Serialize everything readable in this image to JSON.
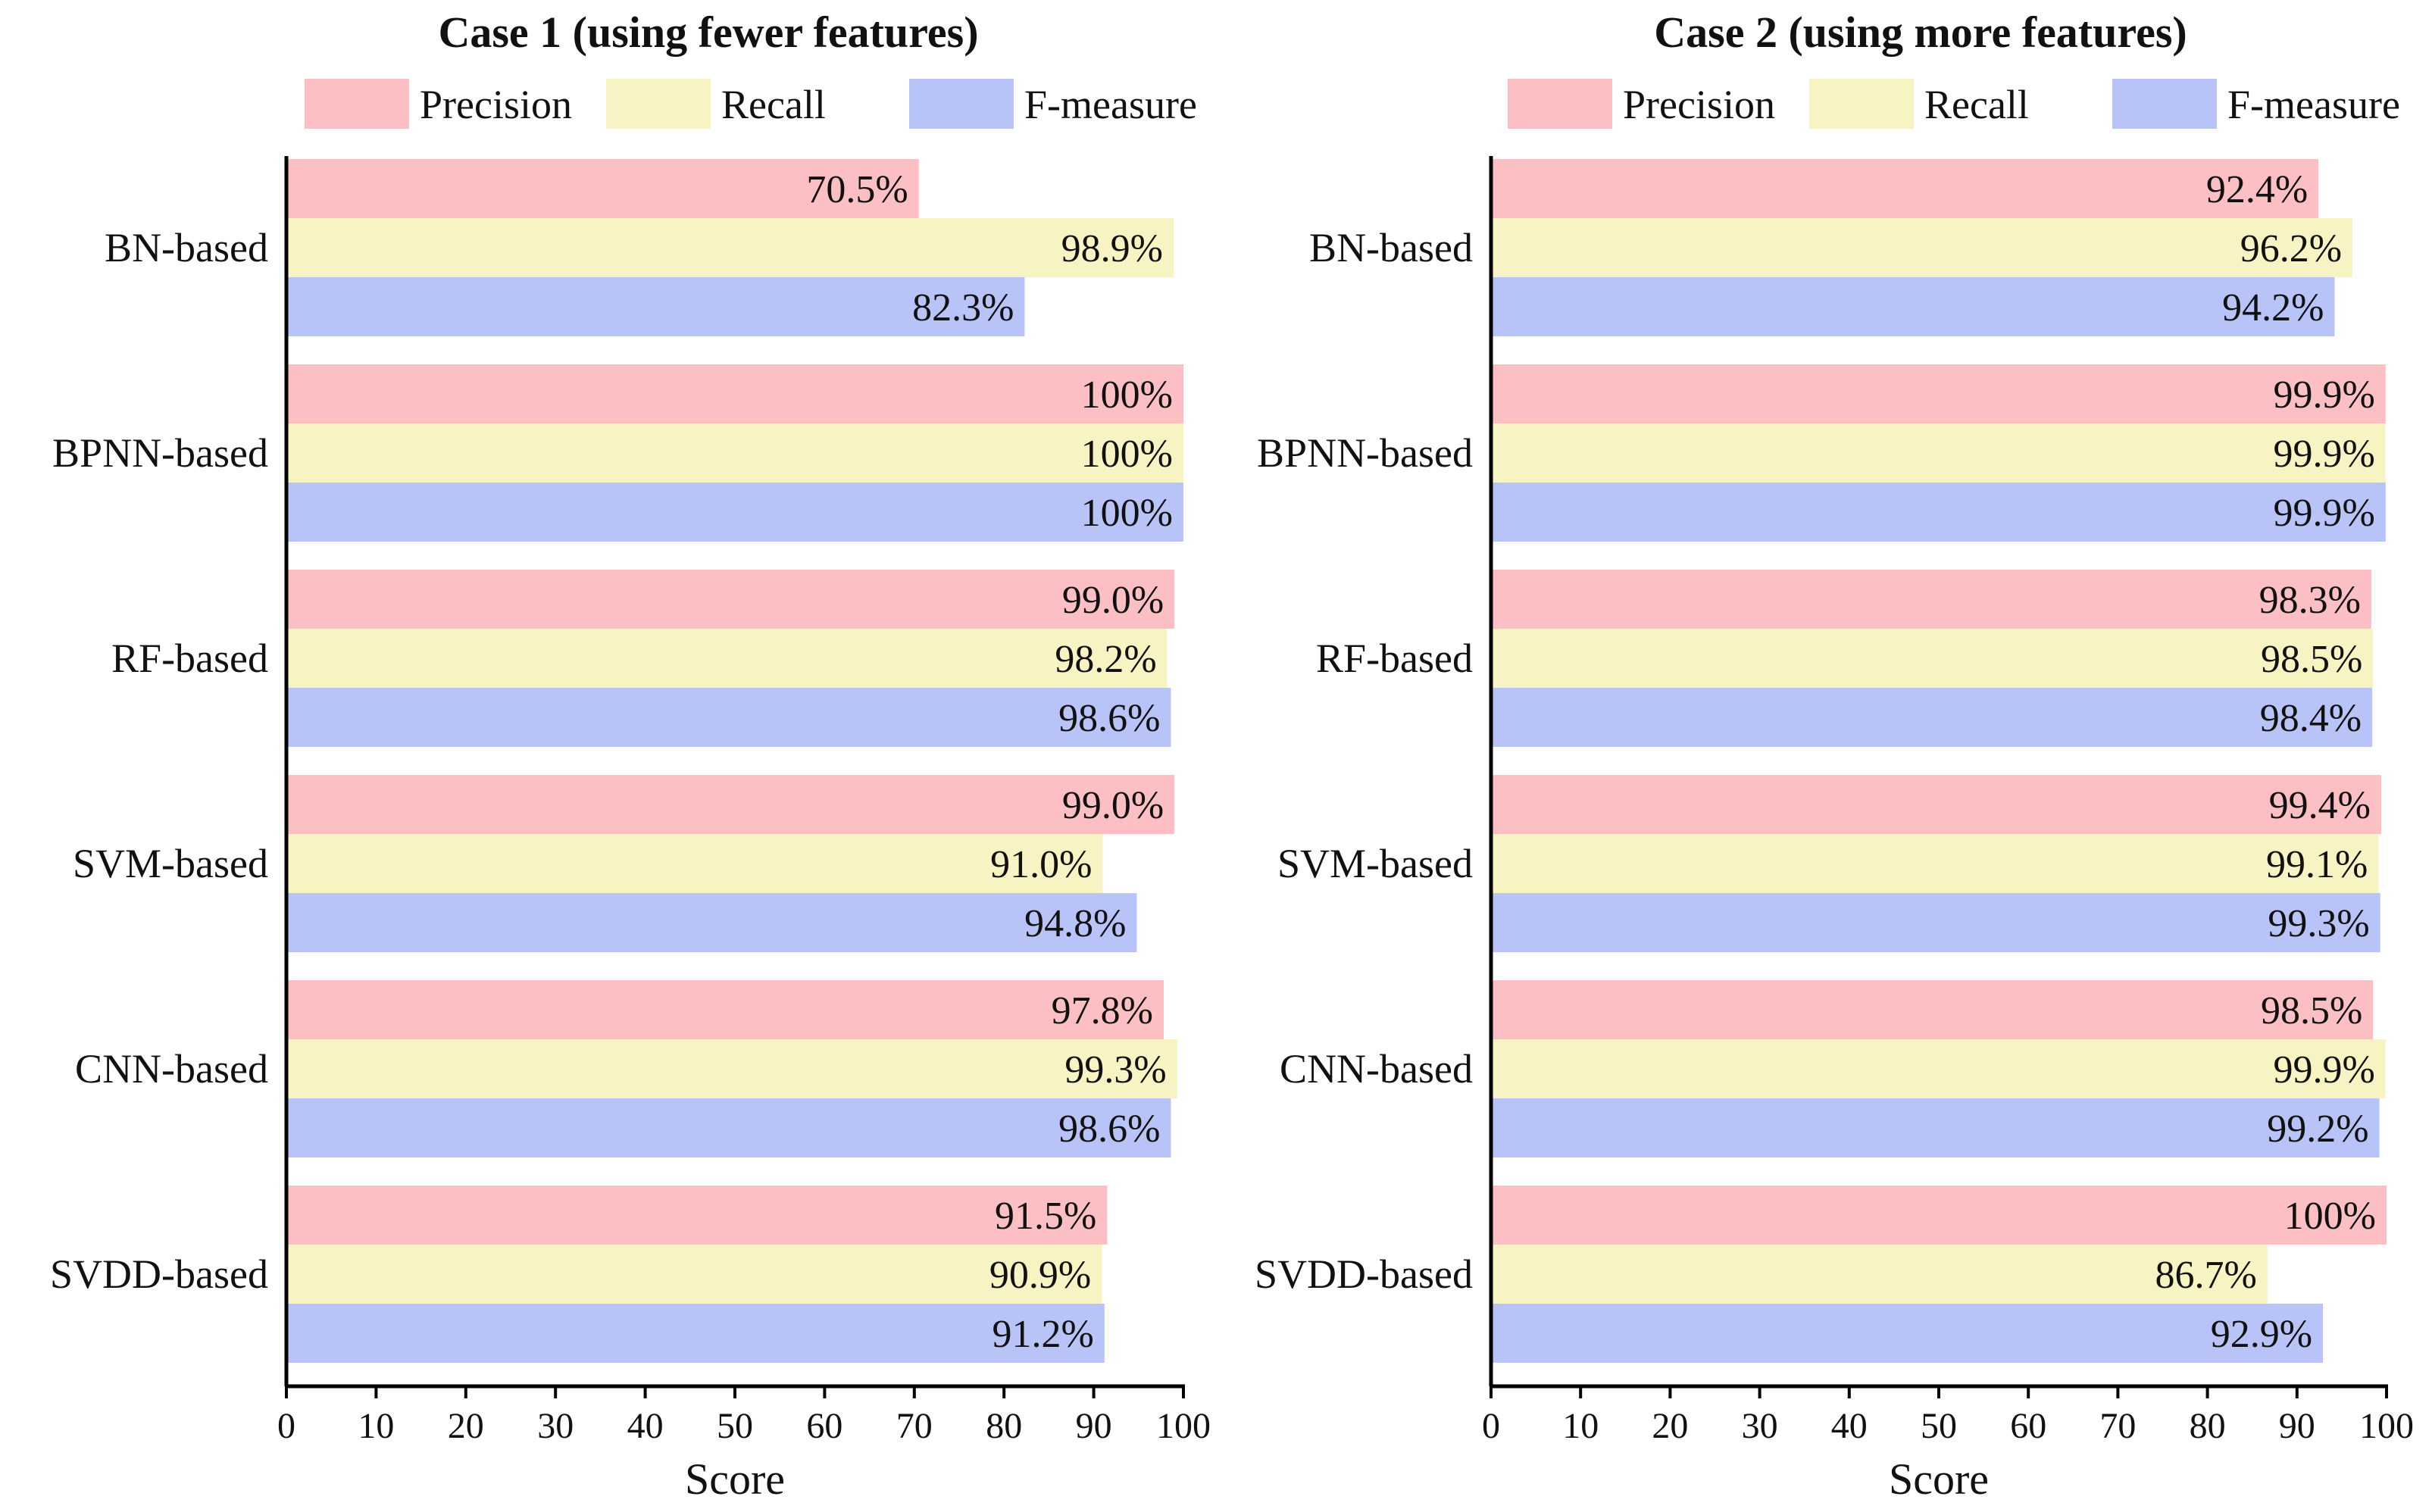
{
  "chart_data": [
    {
      "type": "bar",
      "orientation": "horizontal",
      "title": "Case 1 (using fewer features)",
      "xlabel": "Score",
      "ylabel": "",
      "xlim": [
        0,
        100
      ],
      "xticks": [
        "0",
        "10",
        "20",
        "30",
        "40",
        "50",
        "60",
        "70",
        "80",
        "90",
        "100"
      ],
      "categories": [
        "BN-based",
        "BPNN-based",
        "RF-based",
        "SVM-based",
        "CNN-based",
        "SVDD-based"
      ],
      "series": [
        {
          "name": "Precision",
          "color": "#fcc0c4",
          "values": [
            70.5,
            100,
            99.0,
            99.0,
            97.8,
            91.5
          ],
          "labels": [
            "70.5%",
            "100%",
            "99.0%",
            "99.0%",
            "97.8%",
            "91.5%"
          ]
        },
        {
          "name": "Recall",
          "color": "#f8f3c3",
          "values": [
            98.9,
            100,
            98.2,
            91.0,
            99.3,
            90.9
          ],
          "labels": [
            "98.9%",
            "100%",
            "98.2%",
            "91.0%",
            "99.3%",
            "90.9%"
          ]
        },
        {
          "name": "F-measure",
          "color": "#b8c3f8",
          "values": [
            82.3,
            100,
            98.6,
            94.8,
            98.6,
            91.2
          ],
          "labels": [
            "82.3%",
            "100%",
            "98.6%",
            "94.8%",
            "98.6%",
            "91.2%"
          ]
        }
      ],
      "legend": "top-center",
      "grid": false
    },
    {
      "type": "bar",
      "orientation": "horizontal",
      "title": "Case 2 (using more features)",
      "xlabel": "Score",
      "ylabel": "",
      "xlim": [
        0,
        100
      ],
      "xticks": [
        "0",
        "10",
        "20",
        "30",
        "40",
        "50",
        "60",
        "70",
        "80",
        "90",
        "100"
      ],
      "categories": [
        "BN-based",
        "BPNN-based",
        "RF-based",
        "SVM-based",
        "CNN-based",
        "SVDD-based"
      ],
      "series": [
        {
          "name": "Precision",
          "color": "#fcc0c4",
          "values": [
            92.4,
            99.9,
            98.3,
            99.4,
            98.5,
            100
          ],
          "labels": [
            "92.4%",
            "99.9%",
            "98.3%",
            "99.4%",
            "98.5%",
            "100%"
          ]
        },
        {
          "name": "Recall",
          "color": "#f8f3c3",
          "values": [
            96.2,
            99.9,
            98.5,
            99.1,
            99.9,
            86.7
          ],
          "labels": [
            "96.2%",
            "99.9%",
            "98.5%",
            "99.1%",
            "99.9%",
            "86.7%"
          ]
        },
        {
          "name": "F-measure",
          "color": "#b8c3f8",
          "values": [
            94.2,
            99.9,
            98.4,
            99.3,
            99.2,
            92.9
          ],
          "labels": [
            "94.2%",
            "99.9%",
            "98.4%",
            "99.3%",
            "99.2%",
            "92.9%"
          ]
        }
      ],
      "legend": "top-center",
      "grid": false
    }
  ]
}
